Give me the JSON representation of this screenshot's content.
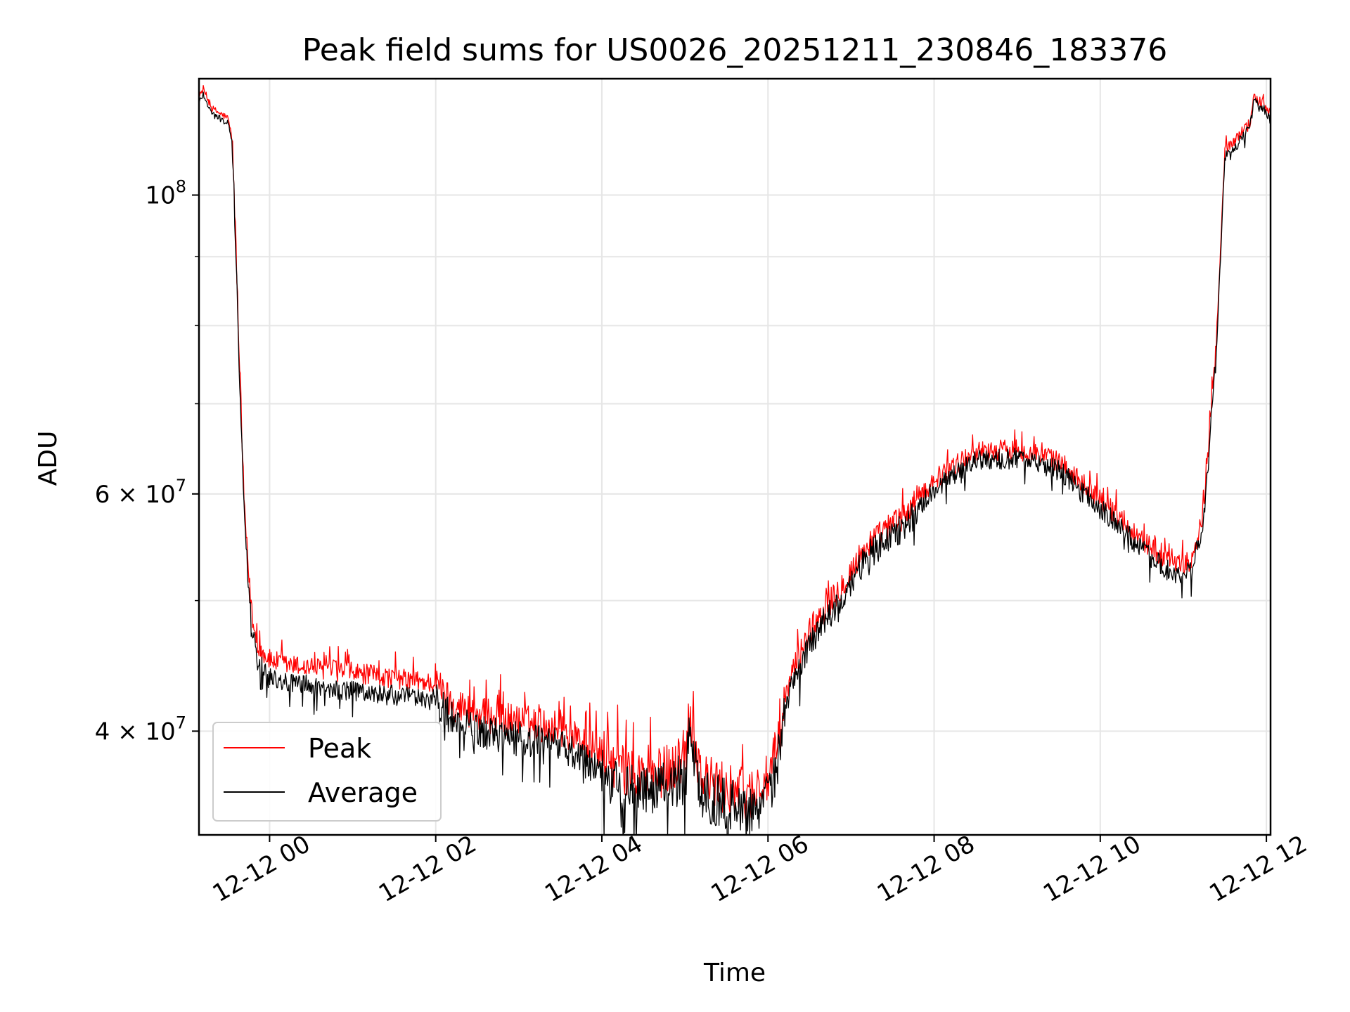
{
  "chart_data": {
    "type": "line",
    "title": "Peak field sums for US0026_20251211_230846_183376",
    "xlabel": "Time",
    "ylabel": "ADU",
    "yscale": "log",
    "grid": true,
    "legend_position": "lower-left",
    "x_unit": "hours since 12-12 00:00",
    "xlim": [
      -0.85,
      12.05
    ],
    "ylim": [
      33500000,
      122000000
    ],
    "x_ticks": [
      {
        "value": 0,
        "label": "12-12 00"
      },
      {
        "value": 2,
        "label": "12-12 02"
      },
      {
        "value": 4,
        "label": "12-12 04"
      },
      {
        "value": 6,
        "label": "12-12 06"
      },
      {
        "value": 8,
        "label": "12-12 08"
      },
      {
        "value": 10,
        "label": "12-12 10"
      },
      {
        "value": 12,
        "label": "12-12 12"
      }
    ],
    "y_ticks": [
      {
        "value": 100000000,
        "mantissa": "",
        "base": "10",
        "exp": "8"
      },
      {
        "value": 60000000,
        "mantissa": "6 × ",
        "base": "10",
        "exp": "7"
      },
      {
        "value": 40000000,
        "mantissa": "4 × ",
        "base": "10",
        "exp": "7"
      }
    ],
    "y_minor_ticks": [
      50000000,
      70000000,
      80000000,
      90000000
    ],
    "series": [
      {
        "name": "Peak",
        "color": "#ff0000",
        "x": [
          -0.85,
          -0.8,
          -0.7,
          -0.6,
          -0.5,
          -0.45,
          -0.4,
          -0.35,
          -0.3,
          -0.25,
          -0.2,
          -0.15,
          -0.1,
          0.0,
          0.2,
          0.5,
          1.0,
          1.5,
          2.0,
          2.2,
          2.5,
          3.0,
          3.5,
          4.0,
          4.3,
          4.6,
          5.0,
          5.05,
          5.2,
          5.5,
          5.8,
          6.0,
          6.1,
          6.25,
          6.5,
          6.9,
          7.2,
          7.6,
          8.0,
          8.5,
          9.0,
          9.5,
          10.0,
          10.5,
          10.9,
          11.1,
          11.25,
          11.4,
          11.5,
          11.8,
          11.85,
          11.95,
          12.05
        ],
        "values": [
          118000000,
          120000000,
          116000000,
          115000000,
          114000000,
          110000000,
          90000000,
          70000000,
          58000000,
          52000000,
          48000000,
          46500000,
          45800000,
          45200000,
          44800000,
          44600000,
          44200000,
          43800000,
          43400000,
          42000000,
          41200000,
          40700000,
          40200000,
          38500000,
          37200000,
          37000000,
          38000000,
          41500000,
          37000000,
          36200000,
          36000000,
          36800000,
          38500000,
          43500000,
          47500000,
          51500000,
          55000000,
          57500000,
          61500000,
          64500000,
          64800000,
          63500000,
          59500000,
          55500000,
          53000000,
          53500000,
          58500000,
          78000000,
          108000000,
          113000000,
          118000000,
          117000000,
          115000000
        ]
      },
      {
        "name": "Average",
        "color": "#000000",
        "x": [
          -0.85,
          -0.8,
          -0.7,
          -0.6,
          -0.5,
          -0.45,
          -0.4,
          -0.35,
          -0.3,
          -0.25,
          -0.2,
          -0.15,
          -0.1,
          0.0,
          0.2,
          0.5,
          1.0,
          1.5,
          2.0,
          2.2,
          2.5,
          3.0,
          3.5,
          4.0,
          4.3,
          4.6,
          5.0,
          5.05,
          5.2,
          5.5,
          5.8,
          6.0,
          6.1,
          6.25,
          6.5,
          6.9,
          7.2,
          7.6,
          8.0,
          8.5,
          9.0,
          9.5,
          10.0,
          10.5,
          10.9,
          11.1,
          11.25,
          11.4,
          11.5,
          11.8,
          11.85,
          11.95,
          12.05
        ],
        "values": [
          117000000,
          119000000,
          115000000,
          114000000,
          113000000,
          109000000,
          89000000,
          69000000,
          57000000,
          51000000,
          47000000,
          45500000,
          44800000,
          44000000,
          43500000,
          43200000,
          42800000,
          42500000,
          42200000,
          40800000,
          40000000,
          39500000,
          39000000,
          37400000,
          36200000,
          36000000,
          37000000,
          40000000,
          36000000,
          35300000,
          35100000,
          35800000,
          37400000,
          42500000,
          46500000,
          50500000,
          54000000,
          56500000,
          60500000,
          63500000,
          63800000,
          62500000,
          58600000,
          54600000,
          52100000,
          52600000,
          57500000,
          77000000,
          106500000,
          112000000,
          117000000,
          116000000,
          114000000
        ]
      }
    ]
  }
}
